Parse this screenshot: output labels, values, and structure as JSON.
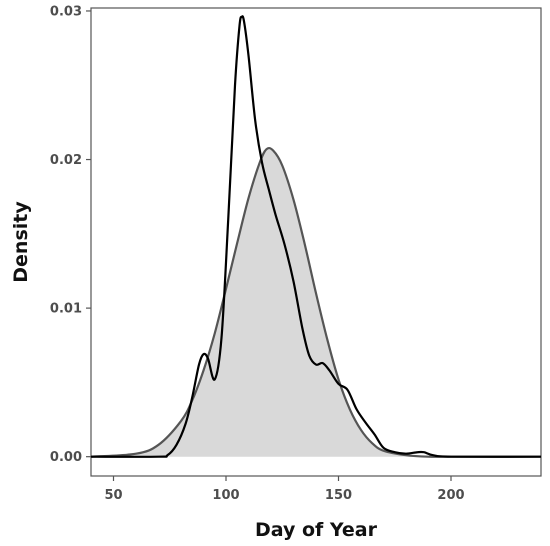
{
  "chart_data": {
    "type": "area",
    "title": "",
    "xlabel": "Day of Year",
    "ylabel": "Density",
    "xlim": [
      40,
      240
    ],
    "ylim": [
      -0.0013,
      0.0302
    ],
    "x_ticks": [
      50,
      100,
      150,
      200
    ],
    "x_tick_labels": [
      "50",
      "100",
      "150",
      "200"
    ],
    "y_ticks": [
      0.0,
      0.01,
      0.02,
      0.03
    ],
    "y_tick_labels": [
      "0.00",
      "0.01",
      "0.02",
      "0.03"
    ],
    "grid": false,
    "legend": "none",
    "series": [
      {
        "kind": "filled-density",
        "color": "#555555",
        "fill": "#d9d9d9",
        "x": [
          40,
          60,
          70,
          80,
          85,
          90,
          95,
          100,
          105,
          110,
          115,
          118,
          121,
          125,
          130,
          135,
          140,
          145,
          150,
          155,
          160,
          165,
          170,
          180,
          190,
          200,
          240
        ],
        "y": [
          0.0,
          0.0002,
          0.0008,
          0.0024,
          0.0038,
          0.0058,
          0.0083,
          0.0113,
          0.0144,
          0.0174,
          0.0198,
          0.0207,
          0.0206,
          0.0196,
          0.0173,
          0.0143,
          0.011,
          0.0079,
          0.0052,
          0.0032,
          0.0018,
          0.0009,
          0.0004,
          0.0001,
          0.0,
          0.0,
          0.0
        ]
      },
      {
        "kind": "observed-density",
        "color": "#000000",
        "x": [
          40,
          70,
          74,
          78,
          82,
          85,
          88,
          90,
          92,
          95,
          98,
          101,
          104,
          106,
          107,
          108,
          110,
          113,
          116,
          119,
          122,
          126,
          130,
          134,
          137,
          140,
          143,
          146,
          150,
          154,
          158,
          162,
          166,
          170,
          175,
          180,
          185,
          188,
          192,
          200,
          240
        ],
        "y": [
          0.0,
          0.0,
          0.0001,
          0.0008,
          0.0022,
          0.004,
          0.0062,
          0.0069,
          0.0066,
          0.0052,
          0.008,
          0.016,
          0.025,
          0.029,
          0.0296,
          0.0293,
          0.027,
          0.0226,
          0.0198,
          0.018,
          0.0163,
          0.0143,
          0.0118,
          0.0086,
          0.0068,
          0.0062,
          0.0063,
          0.0058,
          0.0049,
          0.0045,
          0.0032,
          0.0023,
          0.0015,
          0.0006,
          0.0003,
          0.0002,
          0.0003,
          0.0003,
          0.0001,
          0.0,
          0.0
        ]
      }
    ]
  }
}
